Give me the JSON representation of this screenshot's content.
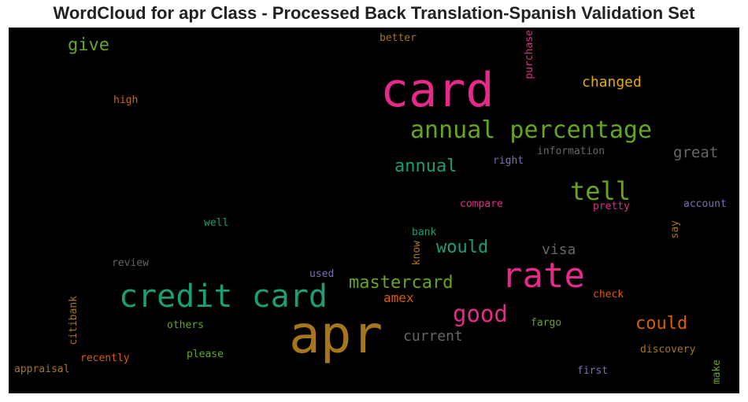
{
  "title": "WordCloud for apr Class - Processed Back Translation-Spanish Validation Set",
  "colors": {
    "background": "#000000",
    "pink": "#e7298a",
    "teal": "#1b9e77",
    "green": "#66a61e",
    "gold": "#a6761d",
    "orange": "#d95f02",
    "yellow": "#e6ab02",
    "purple": "#7570b3",
    "gray": "#666666"
  },
  "words": [
    {
      "text": "card"
    },
    {
      "text": "apr"
    },
    {
      "text": "rate"
    },
    {
      "text": "credit card"
    },
    {
      "text": "annual percentage"
    },
    {
      "text": "tell"
    },
    {
      "text": "good"
    },
    {
      "text": "mastercard"
    },
    {
      "text": "annual"
    },
    {
      "text": "would"
    },
    {
      "text": "could"
    },
    {
      "text": "give"
    },
    {
      "text": "changed"
    },
    {
      "text": "great"
    },
    {
      "text": "visa"
    },
    {
      "text": "current"
    },
    {
      "text": "amex"
    },
    {
      "text": "better"
    },
    {
      "text": "purchase"
    },
    {
      "text": "high"
    },
    {
      "text": "information"
    },
    {
      "text": "right"
    },
    {
      "text": "compare"
    },
    {
      "text": "pretty"
    },
    {
      "text": "account"
    },
    {
      "text": "well"
    },
    {
      "text": "bank"
    },
    {
      "text": "say"
    },
    {
      "text": "know"
    },
    {
      "text": "review"
    },
    {
      "text": "used"
    },
    {
      "text": "check"
    },
    {
      "text": "citibank"
    },
    {
      "text": "others"
    },
    {
      "text": "fargo"
    },
    {
      "text": "discovery"
    },
    {
      "text": "please"
    },
    {
      "text": "recently"
    },
    {
      "text": "appraisal"
    },
    {
      "text": "first"
    },
    {
      "text": "make"
    }
  ]
}
